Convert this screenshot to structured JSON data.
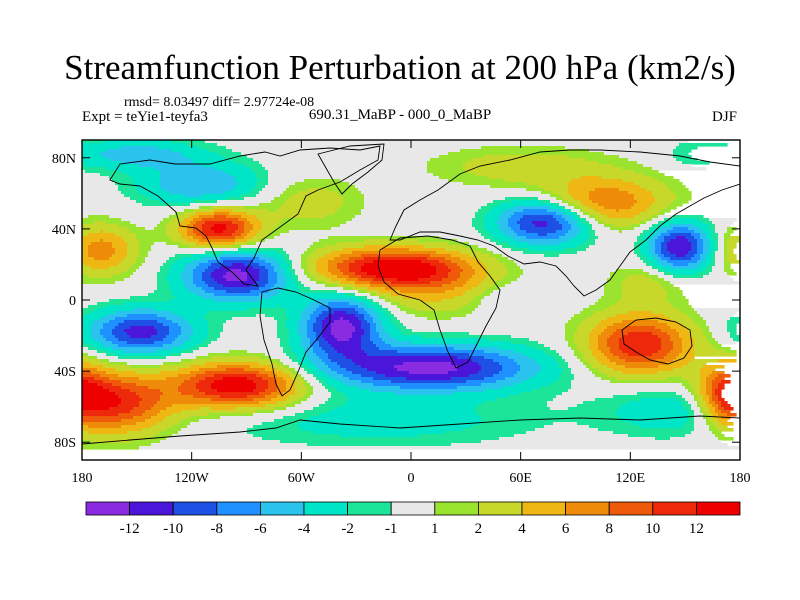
{
  "chart_data": {
    "type": "heatmap",
    "title": "Streamfunction Perturbation at 200 hPa (km2/s)",
    "subtitle_left": "rmsd= 8.03497  diff= 2.97724e-08",
    "label_left": "Expt = teYie1-teyfa3",
    "label_center": "690.31_MaBP - 000_0_MaBP",
    "label_right": "DJF",
    "x_ticks": [
      "180",
      "120W",
      "60W",
      "0",
      "60E",
      "120E",
      "180"
    ],
    "x_tick_values": [
      -180,
      -120,
      -60,
      0,
      60,
      120,
      180
    ],
    "y_ticks": [
      "80N",
      "40N",
      "0",
      "40S",
      "80S"
    ],
    "y_tick_values": [
      80,
      40,
      0,
      -40,
      -80
    ],
    "xlim": [
      -180,
      180
    ],
    "ylim": [
      -90,
      90
    ],
    "colorbar": {
      "labels": [
        "-12",
        "-10",
        "-8",
        "-6",
        "-4",
        "-2",
        "-1",
        "1",
        "2",
        "4",
        "6",
        "8",
        "10",
        "12"
      ],
      "levels": [
        -12,
        -10,
        -8,
        -6,
        -4,
        -2,
        -1,
        1,
        2,
        4,
        6,
        8,
        10,
        12
      ],
      "colors": [
        "#8a2be2",
        "#4b16d9",
        "#1e50e6",
        "#1e90ff",
        "#29c3ee",
        "#00e5c8",
        "#1ce59a",
        "#e8e8e8",
        "#9ae32e",
        "#c8d82a",
        "#eeb714",
        "#ee8c0a",
        "#ee5a0a",
        "#ee280a",
        "#ee0000"
      ]
    },
    "field_centers": [
      {
        "lon": -148,
        "lat": -18,
        "value": -11,
        "sx": 20,
        "sy": 9
      },
      {
        "lon": -95,
        "lat": 14,
        "value": -13,
        "sx": 20,
        "sy": 10
      },
      {
        "lon": -38,
        "lat": -15,
        "value": -13,
        "sx": 15,
        "sy": 12
      },
      {
        "lon": 10,
        "lat": -38,
        "value": -13,
        "sx": 40,
        "sy": 9
      },
      {
        "lon": -18,
        "lat": -68,
        "value": -3,
        "sx": 60,
        "sy": 10
      },
      {
        "lon": 73,
        "lat": 44,
        "value": -12,
        "sx": 18,
        "sy": 9
      },
      {
        "lon": 147,
        "lat": 30,
        "value": -12,
        "sx": 12,
        "sy": 10
      },
      {
        "lon": -115,
        "lat": 65,
        "value": -6,
        "sx": 24,
        "sy": 9
      },
      {
        "lon": 50,
        "lat": 1,
        "value": -2,
        "sx": 14,
        "sy": 7
      },
      {
        "lon": 150,
        "lat": -62,
        "value": -4,
        "sx": 30,
        "sy": 10
      },
      {
        "lon": -105,
        "lat": 40,
        "value": 13,
        "sx": 15,
        "sy": 8
      },
      {
        "lon": -10,
        "lat": 18,
        "value": 14,
        "sx": 30,
        "sy": 8
      },
      {
        "lon": -95,
        "lat": -48,
        "value": 14,
        "sx": 24,
        "sy": 9
      },
      {
        "lon": -162,
        "lat": -58,
        "value": 12,
        "sx": 22,
        "sy": 12
      },
      {
        "lon": 125,
        "lat": -25,
        "value": 12,
        "sx": 20,
        "sy": 12
      },
      {
        "lon": -170,
        "lat": 28,
        "value": 7,
        "sx": 14,
        "sy": 10
      },
      {
        "lon": 105,
        "lat": 55,
        "value": 8,
        "sx": 25,
        "sy": 10
      },
      {
        "lon": 175,
        "lat": -52,
        "value": 10,
        "sx": 12,
        "sy": 12
      },
      {
        "lon": 15,
        "lat": 5,
        "value": 4,
        "sx": 25,
        "sy": 10
      },
      {
        "lon": 60,
        "lat": 75,
        "value": 3,
        "sx": 35,
        "sy": 8
      },
      {
        "lon": 130,
        "lat": 10,
        "value": 3,
        "sx": 15,
        "sy": 8
      },
      {
        "lon": -55,
        "lat": 55,
        "value": 3,
        "sx": 20,
        "sy": 10
      },
      {
        "lon": -150,
        "lat": 82,
        "value": -5,
        "sx": 25,
        "sy": 6
      },
      {
        "lon": 160,
        "lat": 82,
        "value": -2,
        "sx": 15,
        "sy": 6
      }
    ]
  }
}
